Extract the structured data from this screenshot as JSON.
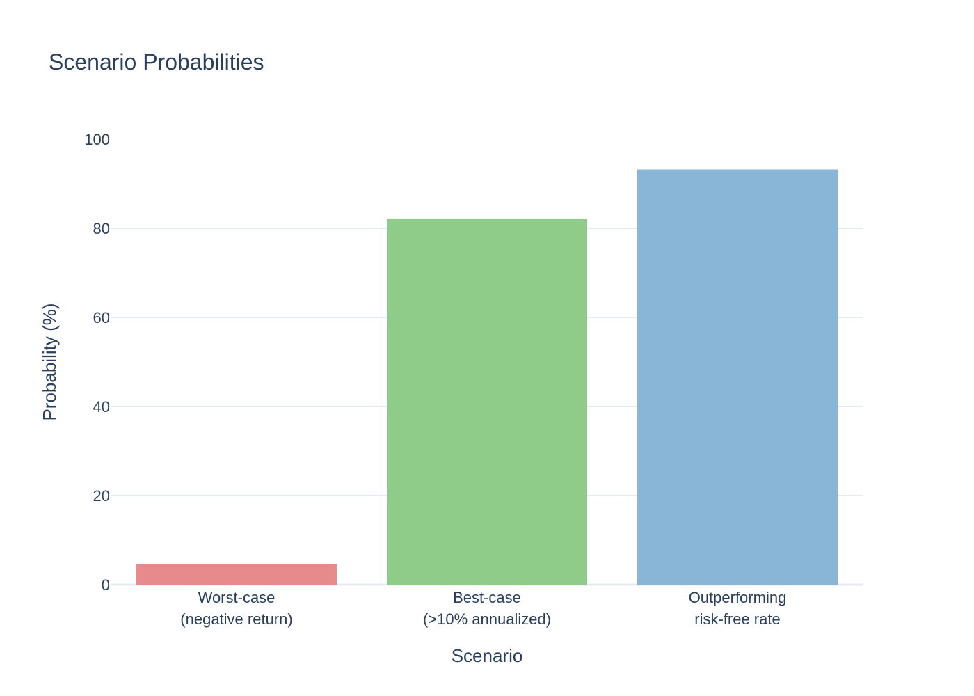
{
  "chart_data": {
    "type": "bar",
    "title": "Scenario Probabilities",
    "xlabel": "Scenario",
    "ylabel": "Probability (%)",
    "categories": [
      [
        "Worst-case",
        "(negative return)"
      ],
      [
        "Best-case",
        "(>10% annualized)"
      ],
      [
        "Outperforming",
        "risk-free rate"
      ]
    ],
    "values": [
      4.6,
      82.2,
      93.2
    ],
    "colors": [
      "#e78a8b",
      "#8fcc8a",
      "#89b5d7"
    ],
    "ylim": [
      0,
      100
    ],
    "yticks": [
      "0",
      "20",
      "40",
      "60",
      "80",
      "100"
    ],
    "grid": true,
    "legend": "none"
  }
}
